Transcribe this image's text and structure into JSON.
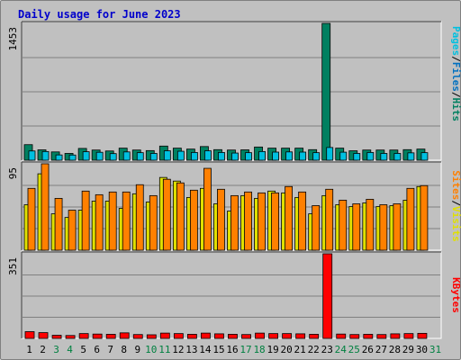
{
  "title": "Daily usage for June 2023",
  "colors": {
    "background": "#c0c0c0",
    "plot": "#c0c0c0",
    "title": "#0000cc",
    "hits": "#008060",
    "files": "#0070c0",
    "pages": "#00c0e0",
    "visits": "#e0e000",
    "sites": "#ff8000",
    "kbytes": "#ff0000",
    "weekday": "#000000",
    "weekend": "#008040",
    "grid": "#808080"
  },
  "chart_data": [
    {
      "type": "bar",
      "panel": "top",
      "title": "Daily usage for June 2023",
      "ylabel_parts": [
        "Pages",
        "/",
        "Files",
        "/",
        "Hits"
      ],
      "ymax_label": "1453",
      "ylim": [
        0,
        1453
      ],
      "categories": [
        "1",
        "2",
        "3",
        "4",
        "5",
        "6",
        "7",
        "8",
        "9",
        "10",
        "11",
        "12",
        "13",
        "14",
        "15",
        "16",
        "17",
        "18",
        "19",
        "20",
        "21",
        "22",
        "23",
        "24",
        "25",
        "26",
        "27",
        "28",
        "29",
        "30",
        "31"
      ],
      "series": [
        {
          "name": "Hits",
          "color": "#008060",
          "values": [
            165,
            110,
            88,
            72,
            125,
            108,
            98,
            128,
            108,
            102,
            150,
            128,
            118,
            145,
            112,
            108,
            110,
            140,
            128,
            128,
            128,
            112,
            1453,
            128,
            100,
            108,
            108,
            108,
            112,
            118,
            0
          ]
        },
        {
          "name": "Files",
          "color": "#0070c0",
          "values": [
            165,
            110,
            88,
            72,
            125,
            108,
            98,
            128,
            108,
            102,
            150,
            128,
            118,
            145,
            112,
            108,
            110,
            140,
            128,
            128,
            128,
            112,
            1453,
            128,
            100,
            108,
            108,
            108,
            112,
            118,
            0
          ]
        },
        {
          "name": "Pages",
          "color": "#00c0e0",
          "values": [
            98,
            92,
            56,
            55,
            90,
            84,
            70,
            88,
            80,
            72,
            100,
            95,
            82,
            100,
            82,
            76,
            80,
            92,
            86,
            88,
            86,
            80,
            135,
            85,
            72,
            82,
            72,
            72,
            78,
            80,
            0
          ]
        }
      ]
    },
    {
      "type": "bar",
      "panel": "middle",
      "ylabel_parts": [
        "Sites",
        "/",
        "Visits"
      ],
      "ymax_label": "95",
      "ylim": [
        0,
        95
      ],
      "categories": [
        "1",
        "2",
        "3",
        "4",
        "5",
        "6",
        "7",
        "8",
        "9",
        "10",
        "11",
        "12",
        "13",
        "14",
        "15",
        "16",
        "17",
        "18",
        "19",
        "20",
        "21",
        "22",
        "23",
        "24",
        "25",
        "26",
        "27",
        "28",
        "29",
        "30",
        "31"
      ],
      "series": [
        {
          "name": "Visits",
          "color": "#e0e000",
          "values": [
            50,
            84,
            40,
            36,
            44,
            54,
            54,
            46,
            62,
            53,
            80,
            76,
            58,
            68,
            51,
            43,
            60,
            57,
            65,
            63,
            58,
            40,
            60,
            50,
            48,
            52,
            48,
            49,
            55,
            70,
            0
          ]
        },
        {
          "name": "Sites",
          "color": "#ff8000",
          "values": [
            68,
            95,
            57,
            44,
            65,
            61,
            64,
            64,
            72,
            60,
            78,
            74,
            66,
            90,
            67,
            60,
            64,
            63,
            63,
            70,
            64,
            49,
            67,
            55,
            51,
            56,
            50,
            51,
            68,
            71,
            0
          ]
        }
      ]
    },
    {
      "type": "bar",
      "panel": "bottom",
      "ylabel_parts": [
        "KBytes"
      ],
      "ymax_label": "351",
      "ylim": [
        0,
        351
      ],
      "categories": [
        "1",
        "2",
        "3",
        "4",
        "5",
        "6",
        "7",
        "8",
        "9",
        "10",
        "11",
        "12",
        "13",
        "14",
        "15",
        "16",
        "17",
        "18",
        "19",
        "20",
        "21",
        "22",
        "23",
        "24",
        "25",
        "26",
        "27",
        "28",
        "29",
        "30",
        "31"
      ],
      "series": [
        {
          "name": "KBytes",
          "color": "#ff0000",
          "values": [
            28,
            24,
            13,
            12,
            20,
            18,
            17,
            23,
            16,
            15,
            22,
            20,
            17,
            22,
            19,
            17,
            16,
            22,
            20,
            20,
            19,
            17,
            351,
            18,
            16,
            17,
            16,
            19,
            20,
            21,
            0
          ]
        }
      ]
    }
  ],
  "weekend_days": [
    "3",
    "4",
    "10",
    "11",
    "17",
    "18",
    "24",
    "25",
    "31"
  ]
}
